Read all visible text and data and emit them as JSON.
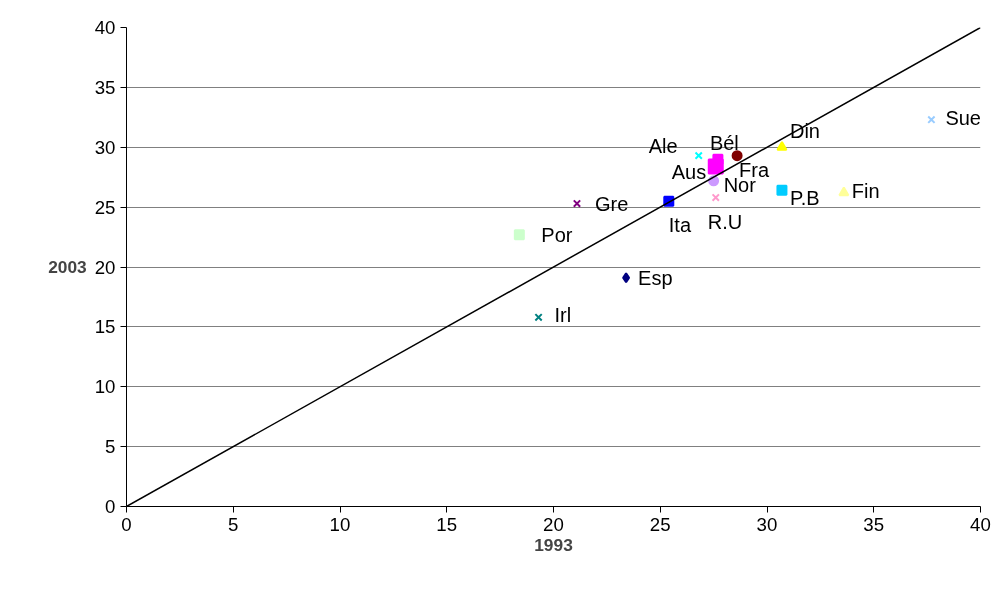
{
  "chart_data": {
    "type": "scatter",
    "xlabel": "1993",
    "ylabel": "2003",
    "xlim": [
      0,
      40
    ],
    "ylim": [
      0,
      40
    ],
    "xticks": [
      0,
      5,
      10,
      15,
      20,
      25,
      30,
      35,
      40
    ],
    "yticks": [
      0,
      5,
      10,
      15,
      20,
      25,
      30,
      35,
      40
    ],
    "grid": "y",
    "series": [
      {
        "name": "Esp",
        "color": "#000080",
        "marker": "diamond",
        "x": [
          23.4
        ],
        "values": [
          19.1
        ]
      },
      {
        "name": "Aus",
        "color": "#ff00ff",
        "marker": "square",
        "x": [
          27.6
        ],
        "values": [
          28.4
        ]
      },
      {
        "name": "Din",
        "color": "#ffff00",
        "marker": "triangle",
        "x": [
          30.7
        ],
        "values": [
          30.0
        ]
      },
      {
        "name": "Ale",
        "color": "#00ffff",
        "marker": "cross",
        "x": [
          26.8
        ],
        "values": [
          29.3
        ]
      },
      {
        "name": "Gre",
        "color": "#800080",
        "marker": "cross",
        "x": [
          21.1
        ],
        "values": [
          25.3
        ]
      },
      {
        "name": "Fra",
        "color": "#800000",
        "marker": "circle",
        "x": [
          28.6
        ],
        "values": [
          29.3
        ]
      },
      {
        "name": "Irl",
        "color": "#008080",
        "marker": "cross",
        "x": [
          19.3
        ],
        "values": [
          15.8
        ]
      },
      {
        "name": "Ita",
        "color": "#0000ff",
        "marker": "square",
        "x": [
          25.4
        ],
        "values": [
          25.5
        ]
      },
      {
        "name": "Sue",
        "color": "#99ccff",
        "marker": "cross",
        "x": [
          37.7
        ],
        "values": [
          32.3
        ]
      },
      {
        "name": "Por",
        "color": "#ccffcc",
        "marker": "square",
        "x": [
          18.4
        ],
        "values": [
          22.7
        ]
      },
      {
        "name": "Nor",
        "color": "#cc99ff",
        "marker": "circle",
        "x": [
          27.5
        ],
        "values": [
          27.2
        ]
      },
      {
        "name": "R.U",
        "color": "#ff99cc",
        "marker": "cross",
        "x": [
          27.6
        ],
        "values": [
          25.8
        ]
      },
      {
        "name": "P.B",
        "color": "#00ccff",
        "marker": "square",
        "x": [
          30.7
        ],
        "values": [
          26.4
        ]
      },
      {
        "name": "Fin",
        "color": "#ffff99",
        "marker": "triangle",
        "x": [
          33.6
        ],
        "values": [
          26.2
        ]
      },
      {
        "name": "Bél",
        "color": "#ff00ff",
        "marker": "square",
        "x": [
          27.7
        ],
        "values": [
          29.0
        ]
      },
      {
        "type": "line",
        "color": "#000000",
        "x": [
          0,
          40
        ],
        "values": [
          0,
          40
        ]
      }
    ]
  }
}
